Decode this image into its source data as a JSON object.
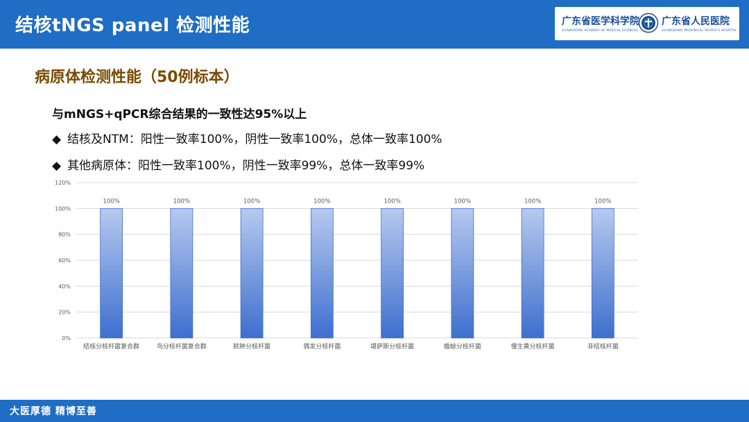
{
  "header": {
    "title": "结核tNGS panel 检测性能",
    "logo_left": "广东省医学科学院",
    "logo_left_sub": "GUANGDONG ACADEMY OF MEDICAL SCIENCES",
    "logo_right": "广东省人民医院",
    "logo_right_sub": "GUANGDONG PROVINCIAL PEOPLE'S HOSPITAL"
  },
  "section_title": "病原体检测性能（50例标本）",
  "summary": "与mNGS+qPCR综合结果的一致性达95%以上",
  "bullets": [
    {
      "marker": "◆",
      "text": "结核及NTM：阳性一致率100%，阴性一致率100%，总体一致率100%"
    },
    {
      "marker": "◆",
      "text": "其他病原体：阳性一致率100%，阴性一致率99%，总体一致率99%"
    }
  ],
  "footer": {
    "motto": "大医厚德  精博至善"
  },
  "colors": {
    "brand_blue": "#1f6dc4",
    "title_brown": "#7a4a00",
    "bar_top": "#b7c9ee",
    "bar_bottom": "#3d6fcf",
    "bar_stroke": "#3d6fcf",
    "grid": "#d9d9d9",
    "tick_text": "#595959"
  },
  "chart_data": {
    "type": "bar",
    "categories": [
      "结核分枝杆菌复合群",
      "鸟分枝杆菌复合群",
      "脓肿分枝杆菌",
      "偶发分枝杆菌",
      "堪萨斯分枝杆菌",
      "蟾蜍分枝杆菌",
      "慢生黄分枝杆菌",
      "非结核杆菌"
    ],
    "values": [
      100,
      100,
      100,
      100,
      100,
      100,
      100,
      100
    ],
    "data_labels": [
      "100%",
      "100%",
      "100%",
      "100%",
      "100%",
      "100%",
      "100%",
      "100%"
    ],
    "yticks": [
      0,
      20,
      40,
      60,
      80,
      100,
      120
    ],
    "ytick_labels": [
      "0%",
      "20%",
      "40%",
      "60%",
      "80%",
      "100%",
      "120%"
    ],
    "ylim": [
      0,
      120
    ],
    "grid": true,
    "legend": "none",
    "title": "",
    "xlabel": "",
    "ylabel": ""
  }
}
